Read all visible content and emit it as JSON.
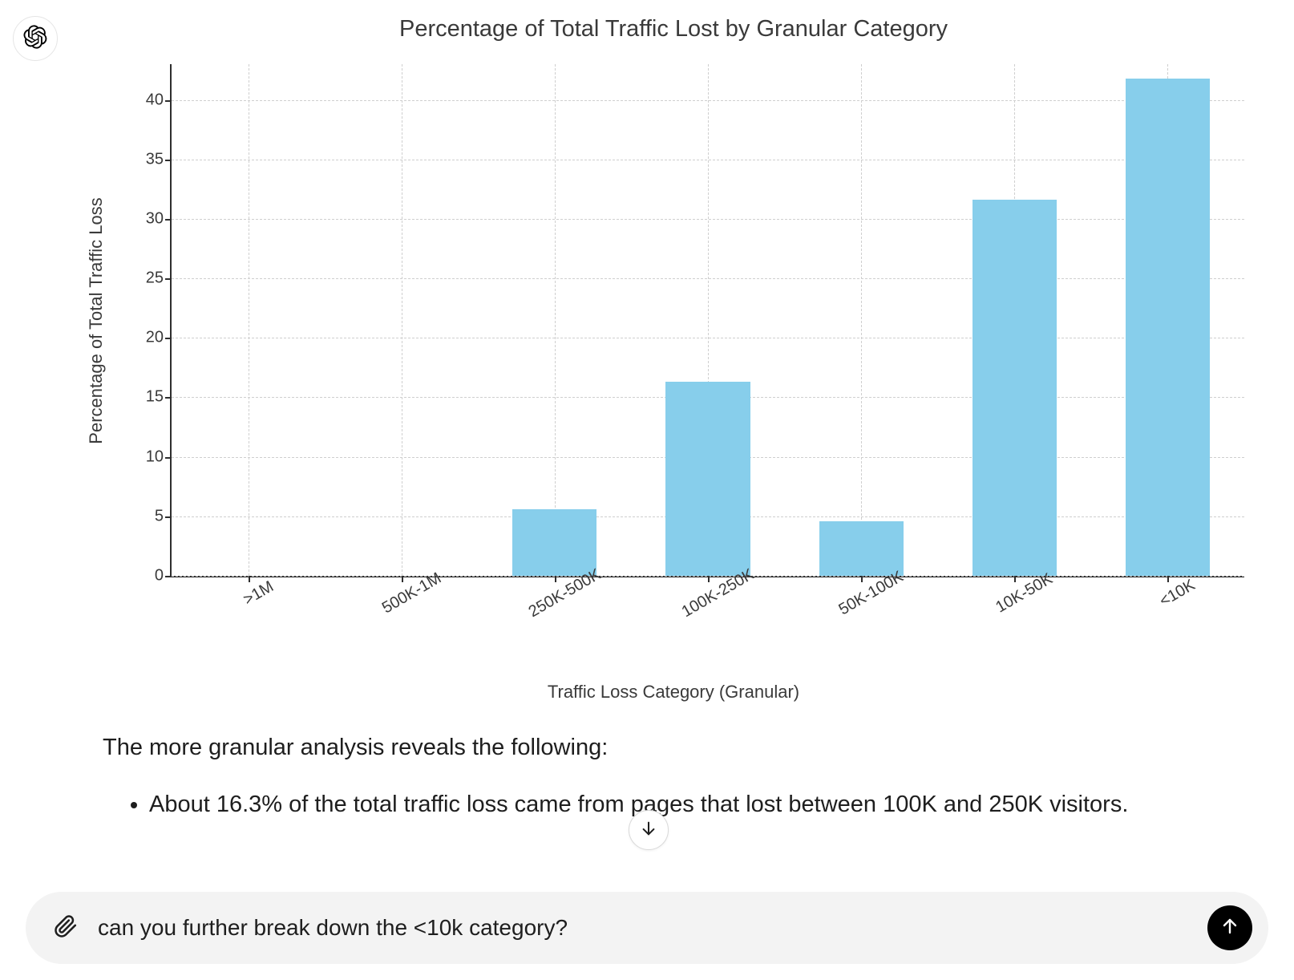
{
  "chart": {
    "type": "bar",
    "title": "Percentage of Total Traffic Lost by Granular Category",
    "title_fontsize": 29,
    "title_color": "#3a3a3a",
    "xlabel": "Traffic Loss Category (Granular)",
    "ylabel": "Percentage of Total Traffic Loss",
    "label_fontsize": 22,
    "tick_fontsize": 20,
    "xtick_rotation_deg": -30,
    "categories": [
      ">1M",
      "500K-1M",
      "250K-500K",
      "100K-250K",
      "50K-100K",
      "10K-50K",
      "<10K"
    ],
    "values": [
      0,
      0,
      5.6,
      16.3,
      4.6,
      31.6,
      41.8
    ],
    "bar_color": "#87ceeb",
    "bar_width": 0.55,
    "ylim": [
      0,
      43
    ],
    "yticks": [
      0,
      5,
      10,
      15,
      20,
      25,
      30,
      35,
      40
    ],
    "grid_color": "#cfcfcf",
    "grid_dash": true,
    "axis_color": "#2e2e2e",
    "background_color": "#ffffff"
  },
  "analysis": {
    "intro": "The more granular analysis reveals the following:",
    "bullets": [
      "About 16.3% of the total traffic loss came from pages that lost between 100K and 250K visitors."
    ]
  },
  "composer": {
    "value": "can you further break down the <10k category?",
    "placeholder": "Message"
  },
  "icons": {
    "logo": "openai",
    "attach": "paperclip",
    "send": "arrow-up",
    "scroll": "arrow-down"
  }
}
